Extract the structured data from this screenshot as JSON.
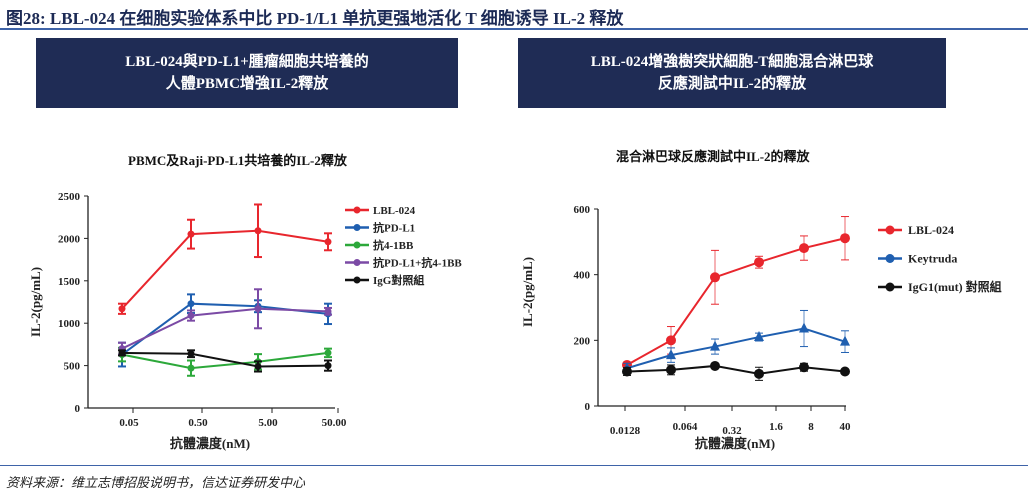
{
  "figure_title": "图28: LBL-024 在细胞实验体系中比 PD-1/L1 单抗更强地活化 T 细胞诱导 IL-2 释放",
  "panels": [
    {
      "header": "LBL-024與PD-L1+腫瘤細胞共培養的\n人體PBMC增強IL-2釋放"
    },
    {
      "header": "LBL-024增強樹突狀細胞-T細胞混合淋巴球\n反應測試中IL-2的釋放"
    }
  ],
  "source": "资料来源：维立志博招股说明书，信达证券研发中心",
  "chart_data": [
    {
      "type": "line",
      "title": "PBMC及Raji-PD-L1共培養的IL-2釋放",
      "xlabel": "抗體濃度(nM)",
      "ylabel": "IL-2(pg/mL)",
      "categories": [
        "0.05",
        "0.50",
        "5.00",
        "50.00"
      ],
      "ylim": [
        0,
        2500
      ],
      "yticks": [
        0,
        500,
        1000,
        1500,
        2000,
        2500
      ],
      "legend": "right",
      "series": [
        {
          "name": "LBL-024",
          "color": "#e8262d",
          "values": [
            1170,
            2050,
            2090,
            1960
          ],
          "errors": [
            60,
            170,
            310,
            100
          ]
        },
        {
          "name": "抗PD-L1",
          "color": "#1f5fb0",
          "values": [
            630,
            1230,
            1200,
            1110
          ],
          "errors": [
            140,
            110,
            70,
            120
          ]
        },
        {
          "name": "抗4-1BB",
          "color": "#2ca83a",
          "values": [
            630,
            470,
            545,
            650
          ],
          "errors": [
            80,
            90,
            90,
            50
          ]
        },
        {
          "name": "抗PD-L1+抗4-1BB",
          "color": "#7b4aa5",
          "values": [
            700,
            1090,
            1170,
            1140
          ],
          "errors": [
            70,
            60,
            230,
            40
          ]
        },
        {
          "name": "IgG對照組",
          "color": "#111111",
          "values": [
            650,
            640,
            490,
            500
          ],
          "errors": [
            30,
            40,
            60,
            60
          ]
        }
      ]
    },
    {
      "type": "line",
      "title": "混合淋巴球反應測試中IL-2的釋放",
      "xlabel": "抗體濃度(nM)",
      "ylabel": "IL-2(pg/mL)",
      "categories": [
        "0.0128",
        "0.064",
        "0.32",
        "1.6",
        "8",
        "40"
      ],
      "ylim": [
        0,
        600
      ],
      "yticks": [
        0,
        200,
        400,
        600
      ],
      "legend": "right",
      "series": [
        {
          "name": "LBL-024",
          "color": "#e8262d",
          "marker": "circle",
          "values": [
            125,
            200,
            392,
            438,
            481,
            511
          ],
          "errors": [
            8,
            42,
            82,
            18,
            37,
            66
          ]
        },
        {
          "name": "Keytruda",
          "color": "#1f5fb0",
          "marker": "triangle",
          "values": [
            115,
            155,
            181,
            210,
            236,
            196
          ],
          "errors": [
            15,
            22,
            23,
            12,
            55,
            33
          ]
        },
        {
          "name": "IgG1(mut) 對照組",
          "color": "#111111",
          "marker": "circle",
          "values": [
            105,
            110,
            122,
            98,
            118,
            105
          ],
          "errors": [
            12,
            15,
            6,
            20,
            12,
            5
          ]
        }
      ]
    }
  ]
}
